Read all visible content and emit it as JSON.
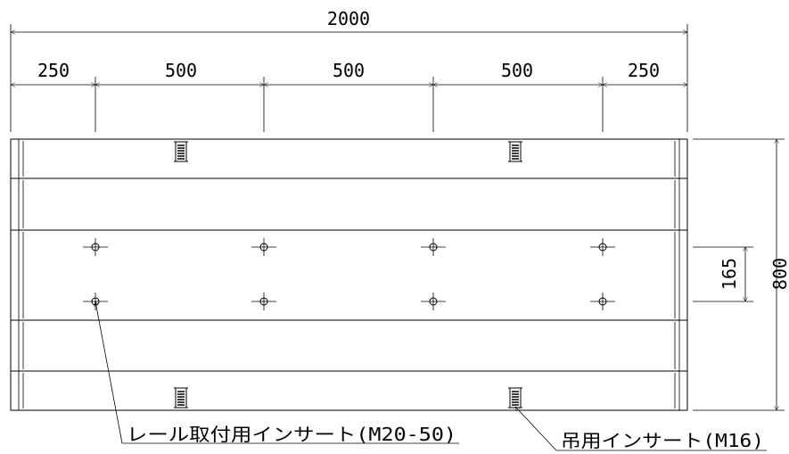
{
  "dimensions": {
    "total_length": "2000",
    "segments": [
      "250",
      "500",
      "500",
      "500",
      "250"
    ],
    "insert_spacing": "165",
    "total_width": "800"
  },
  "labels": {
    "rail_insert": "レール取付用インサート(M20-50)",
    "lifting_insert": "吊用インサート(M16)"
  }
}
